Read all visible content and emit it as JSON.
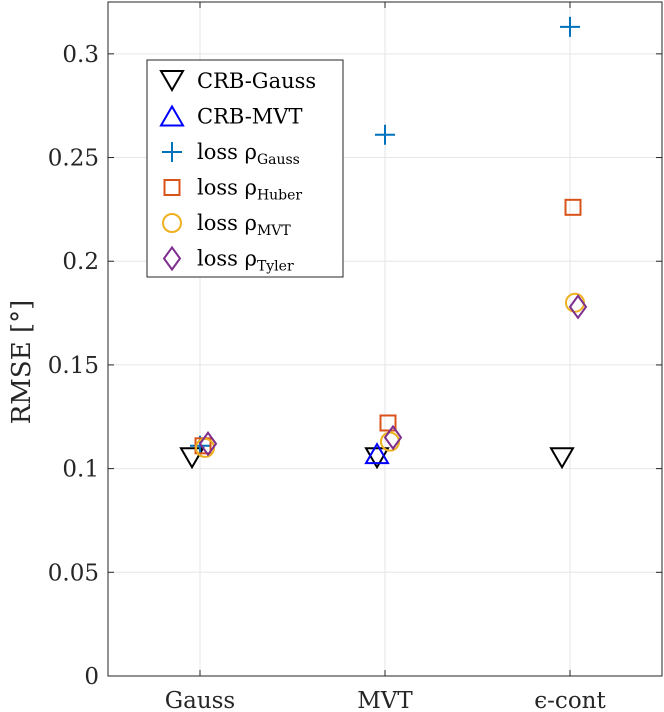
{
  "chart_data": {
    "type": "scatter",
    "categories": [
      "Gauss",
      "MVT",
      "ϵ-cont"
    ],
    "ylabel": "RMSE [°]",
    "ylim": [
      0,
      0.325
    ],
    "yticks": [
      "0",
      "0.05",
      "0.1",
      "0.15",
      "0.2",
      "0.25",
      "0.3"
    ],
    "grid": true,
    "legend_placement": "upper-left",
    "series": [
      {
        "name": "CRB-Gauss",
        "label": "CRB-Gauss",
        "marker": "triangle-down",
        "color": "#000000",
        "values": [
          0.105,
          0.105,
          0.105
        ]
      },
      {
        "name": "CRB-MVT",
        "label": "CRB-MVT",
        "marker": "triangle-up",
        "color": "#0000ff",
        "values": [
          null,
          0.107,
          null
        ]
      },
      {
        "name": "loss ρGauss",
        "label_main": "loss ρ",
        "label_sub": "Gauss",
        "marker": "plus",
        "color": "#0072bd",
        "values": [
          0.111,
          0.261,
          0.313
        ]
      },
      {
        "name": "loss ρHuber",
        "label_main": "loss ρ",
        "label_sub": "Huber",
        "marker": "square",
        "color": "#d95319",
        "values": [
          0.111,
          0.122,
          0.226
        ]
      },
      {
        "name": "loss ρMVT",
        "label_main": "loss ρ",
        "label_sub": "MVT",
        "marker": "circle",
        "color": "#edb120",
        "values": [
          0.11,
          0.113,
          0.18
        ]
      },
      {
        "name": "loss ρTyler",
        "label_main": "loss ρ",
        "label_sub": "Tyler",
        "marker": "diamond",
        "color": "#7e2f8e",
        "values": [
          0.112,
          0.115,
          0.178
        ]
      }
    ]
  }
}
